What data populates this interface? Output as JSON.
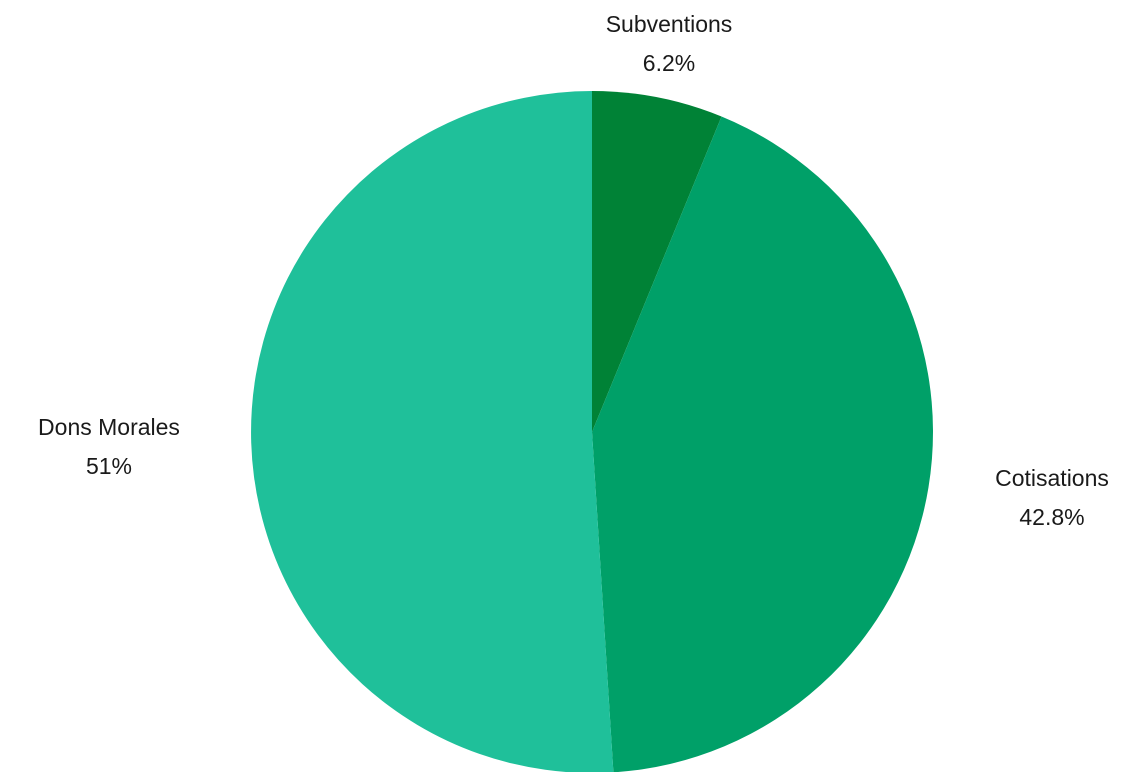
{
  "chart_data": {
    "type": "pie",
    "title": "",
    "slices": [
      {
        "label": "Subventions",
        "value": 6.2,
        "value_label": "6.2%",
        "color": "#008236"
      },
      {
        "label": "Cotisations",
        "value": 42.8,
        "value_label": "42.8%",
        "color": "#00a068"
      },
      {
        "label": "Dons  Morales",
        "value": 51,
        "value_label": "51%",
        "color": "#1fc09a"
      }
    ],
    "start_angle": "12 o'clock",
    "direction": "clockwise",
    "legend": "none",
    "labels": "outside"
  }
}
